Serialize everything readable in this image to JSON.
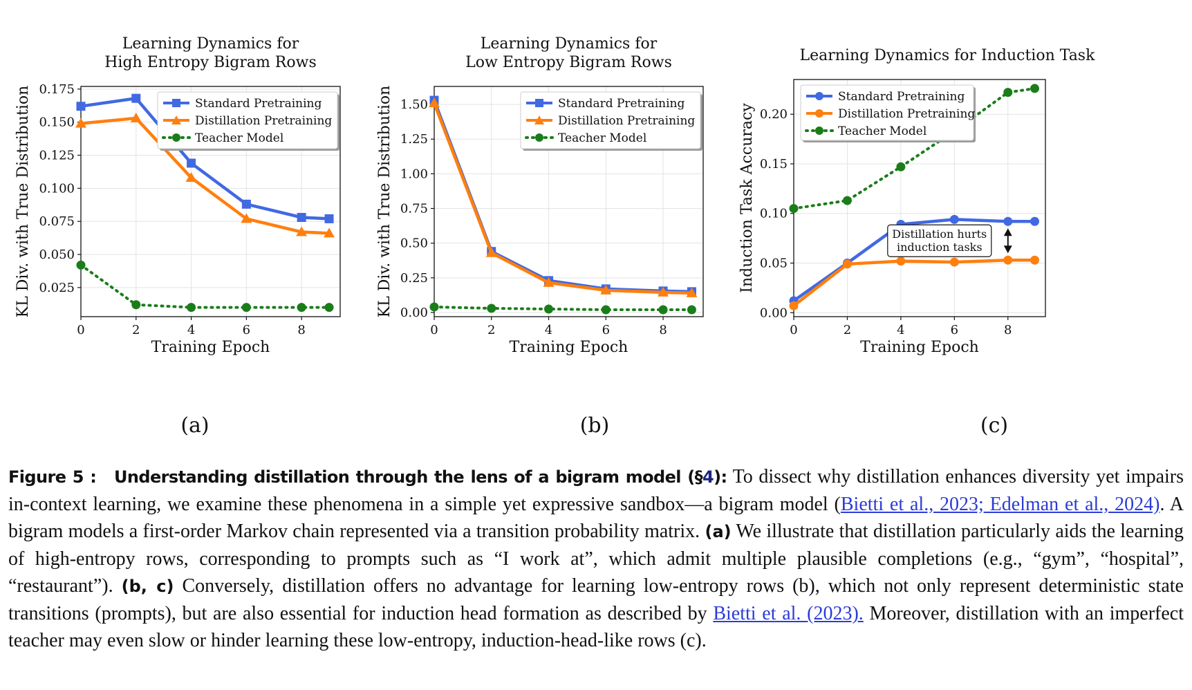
{
  "colors": {
    "standard": "#4169e1",
    "distill": "#ff7f0e",
    "teacher": "#1a7d1a"
  },
  "figure": {
    "subplot_labels": [
      "(a)",
      "(b)",
      "(c)"
    ]
  },
  "chart_data": [
    {
      "type": "line",
      "title": [
        "Learning Dynamics for",
        "High Entropy Bigram Rows"
      ],
      "xlabel": "Training Epoch",
      "ylabel": "KL Div. with True Distribution",
      "x": [
        0,
        2,
        4,
        6,
        8,
        9
      ],
      "xlim": [
        0,
        9.4
      ],
      "ylim": [
        0.003,
        0.177
      ],
      "xticks": [
        "0",
        "2",
        "4",
        "6",
        "8"
      ],
      "xtick_values": [
        0,
        2,
        4,
        6,
        8
      ],
      "yticks": [
        "0.025",
        "0.050",
        "0.075",
        "0.100",
        "0.125",
        "0.150",
        "0.175"
      ],
      "ytick_values": [
        0.025,
        0.05,
        0.075,
        0.1,
        0.125,
        0.15,
        0.175
      ],
      "grid": true,
      "legend_position": "top-right",
      "series": [
        {
          "name": "Standard Pretraining",
          "marker": "square",
          "values": [
            0.162,
            0.168,
            0.119,
            0.088,
            0.078,
            0.077
          ]
        },
        {
          "name": "Distillation Pretraining",
          "marker": "triangle",
          "values": [
            0.149,
            0.153,
            0.108,
            0.077,
            0.067,
            0.066
          ]
        },
        {
          "name": "Teacher Model",
          "marker": "circle",
          "values": [
            0.042,
            0.012,
            0.01,
            0.01,
            0.01,
            0.01
          ]
        }
      ]
    },
    {
      "type": "line",
      "title": [
        "Learning Dynamics for",
        "Low Entropy Bigram Rows"
      ],
      "xlabel": "Training Epoch",
      "ylabel": "KL Div. with True Distribution",
      "x": [
        0,
        2,
        4,
        6,
        8,
        9
      ],
      "xlim": [
        0,
        9.4
      ],
      "ylim": [
        -0.03,
        1.63
      ],
      "xticks": [
        "0",
        "2",
        "4",
        "6",
        "8"
      ],
      "xtick_values": [
        0,
        2,
        4,
        6,
        8
      ],
      "yticks": [
        "0.00",
        "0.25",
        "0.50",
        "0.75",
        "1.00",
        "1.25",
        "1.50"
      ],
      "ytick_values": [
        0,
        0.25,
        0.5,
        0.75,
        1.0,
        1.25,
        1.5
      ],
      "grid": true,
      "legend_position": "top-right",
      "series": [
        {
          "name": "Standard Pretraining",
          "marker": "square",
          "values": [
            1.53,
            0.44,
            0.23,
            0.17,
            0.155,
            0.15
          ]
        },
        {
          "name": "Distillation Pretraining",
          "marker": "triangle",
          "values": [
            1.51,
            0.43,
            0.215,
            0.16,
            0.145,
            0.14
          ]
        },
        {
          "name": "Teacher Model",
          "marker": "circle",
          "values": [
            0.04,
            0.03,
            0.025,
            0.02,
            0.02,
            0.02
          ]
        }
      ]
    },
    {
      "type": "line",
      "title": [
        "Learning Dynamics for Induction Task"
      ],
      "xlabel": "Training Epoch",
      "ylabel": "Induction Task Accuracy",
      "x": [
        0,
        2,
        4,
        6,
        8,
        9
      ],
      "xlim": [
        0,
        9.4
      ],
      "ylim": [
        -0.004,
        0.235
      ],
      "xticks": [
        "0",
        "2",
        "4",
        "6",
        "8"
      ],
      "xtick_values": [
        0,
        2,
        4,
        6,
        8
      ],
      "yticks": [
        "0.00",
        "0.05",
        "0.10",
        "0.15",
        "0.20"
      ],
      "ytick_values": [
        0,
        0.05,
        0.1,
        0.15,
        0.2
      ],
      "grid": true,
      "legend_position": "top-left",
      "annotation": {
        "text": [
          "Distillation hurts",
          "induction tasks"
        ],
        "x": 8,
        "y_from": 0.092,
        "y_to": 0.053
      },
      "series": [
        {
          "name": "Standard Pretraining",
          "marker": "circle",
          "values": [
            0.012,
            0.05,
            0.089,
            0.094,
            0.092,
            0.092
          ]
        },
        {
          "name": "Distillation Pretraining",
          "marker": "circle",
          "values": [
            0.007,
            0.049,
            0.052,
            0.051,
            0.053,
            0.053
          ]
        },
        {
          "name": "Teacher Model",
          "marker": "circle",
          "values": [
            0.105,
            0.113,
            0.147,
            0.183,
            0.222,
            0.226
          ]
        }
      ]
    }
  ],
  "caption": {
    "figure_label": "Figure 5 :",
    "figure_title": "Understanding distillation through the lens of a bigram model (§",
    "section_ref": "4",
    "title_end": "):",
    "text1": " To dissect why distillation enhances diversity yet impairs in-context learning, we examine these phenomena in a simple yet expressive sandbox—a bigram model (",
    "cite1": "Bietti et al., 2023; Edelman et al., 2024)",
    "text2": ". A bigram models a first-order Markov chain represented via a transition probability matrix. ",
    "tag_a": "(a)",
    "text3": " We illustrate that distillation particularly aids the learning of high-entropy rows, corresponding to prompts such as “I work at”, which admit multiple plausible completions (e.g., “gym”, “hospital”, “restaurant”). ",
    "tag_bc": "(b, c)",
    "text4": " Conversely, distillation offers no advantage for learning low-entropy rows (b), which not only represent deterministic state transitions (prompts), but are also essential for induction head formation as described by ",
    "cite2": "Bietti et al. (2023).",
    "text5": " Moreover, distillation with an imperfect teacher may even slow or hinder learning these low-entropy, induction-head-like rows (c)."
  }
}
